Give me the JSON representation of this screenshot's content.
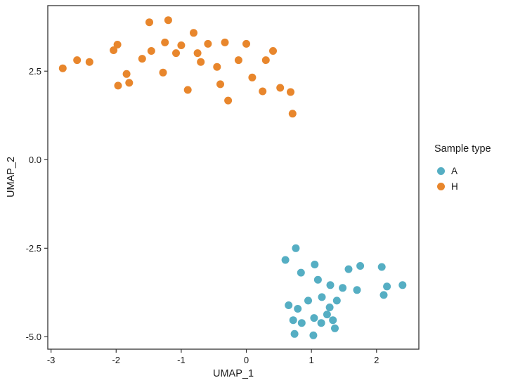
{
  "chart_data": {
    "type": "scatter",
    "title": "",
    "xlabel": "UMAP_1",
    "ylabel": "UMAP_2",
    "xlim": [
      -3.05,
      2.65
    ],
    "ylim": [
      -5.35,
      4.35
    ],
    "x_ticks": [
      -3,
      -2,
      -1,
      0,
      1,
      2
    ],
    "x_tick_labels": [
      "-3",
      "-2",
      "-1",
      "0",
      "1",
      "2"
    ],
    "y_ticks": [
      2.5,
      0.0,
      -2.5,
      -5.0
    ],
    "y_tick_labels": [
      "2.5",
      "0.0",
      "-2.5",
      "-5.0"
    ],
    "grid": false,
    "point_radius": 5.5,
    "panel_border_color": "#333333",
    "legend": {
      "title": "Sample type",
      "position": "right"
    },
    "series": [
      {
        "name": "A",
        "color": "#55AEC3",
        "points": [
          [
            0.76,
            -2.5
          ],
          [
            0.6,
            -2.83
          ],
          [
            1.05,
            -2.96
          ],
          [
            0.84,
            -3.19
          ],
          [
            1.1,
            -3.39
          ],
          [
            1.29,
            -3.54
          ],
          [
            1.57,
            -3.09
          ],
          [
            1.75,
            -3.0
          ],
          [
            2.08,
            -3.03
          ],
          [
            1.48,
            -3.62
          ],
          [
            1.7,
            -3.68
          ],
          [
            2.16,
            -3.58
          ],
          [
            2.4,
            -3.54
          ],
          [
            0.65,
            -4.11
          ],
          [
            0.79,
            -4.21
          ],
          [
            0.95,
            -3.98
          ],
          [
            1.16,
            -3.88
          ],
          [
            1.28,
            -4.17
          ],
          [
            1.39,
            -3.98
          ],
          [
            2.11,
            -3.82
          ],
          [
            0.72,
            -4.53
          ],
          [
            0.85,
            -4.61
          ],
          [
            1.04,
            -4.47
          ],
          [
            1.15,
            -4.61
          ],
          [
            1.33,
            -4.53
          ],
          [
            1.36,
            -4.76
          ],
          [
            0.74,
            -4.92
          ],
          [
            1.03,
            -4.96
          ],
          [
            1.24,
            -4.37
          ]
        ]
      },
      {
        "name": "H",
        "color": "#E8862C",
        "points": [
          [
            -2.82,
            2.58
          ],
          [
            -2.6,
            2.81
          ],
          [
            -2.41,
            2.76
          ],
          [
            -2.04,
            3.09
          ],
          [
            -1.98,
            3.25
          ],
          [
            -1.97,
            2.09
          ],
          [
            -1.84,
            2.42
          ],
          [
            -1.8,
            2.17
          ],
          [
            -1.6,
            2.85
          ],
          [
            -1.49,
            3.88
          ],
          [
            -1.46,
            3.07
          ],
          [
            -1.28,
            2.46
          ],
          [
            -1.25,
            3.31
          ],
          [
            -1.2,
            3.94
          ],
          [
            -1.08,
            3.01
          ],
          [
            -1.0,
            3.23
          ],
          [
            -0.9,
            1.97
          ],
          [
            -0.81,
            3.58
          ],
          [
            -0.75,
            3.01
          ],
          [
            -0.7,
            2.76
          ],
          [
            -0.59,
            3.27
          ],
          [
            -0.45,
            2.62
          ],
          [
            -0.4,
            2.13
          ],
          [
            -0.33,
            3.31
          ],
          [
            -0.28,
            1.67
          ],
          [
            -0.12,
            2.81
          ],
          [
            0.0,
            3.27
          ],
          [
            0.09,
            2.32
          ],
          [
            0.25,
            1.93
          ],
          [
            0.3,
            2.81
          ],
          [
            0.41,
            3.07
          ],
          [
            0.52,
            2.03
          ],
          [
            0.68,
            1.91
          ],
          [
            0.71,
            1.3
          ]
        ]
      }
    ]
  }
}
